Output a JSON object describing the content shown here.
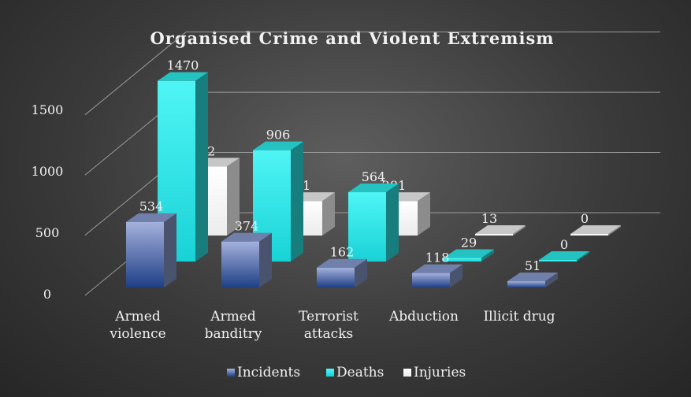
{
  "chart_data": {
    "type": "bar",
    "title": "Organised Crime and Violent Extremism",
    "categories": [
      [
        "Armed",
        "violence"
      ],
      [
        "Armed",
        "banditry"
      ],
      [
        "Terrorist",
        "attacks"
      ],
      [
        "Abduction"
      ],
      [
        "Illicit drug"
      ]
    ],
    "series": [
      {
        "name": "Incidents",
        "values": [
          534,
          374,
          162,
          118,
          51
        ],
        "color": "#8496c8"
      },
      {
        "name": "Deaths",
        "values": [
          1470,
          906,
          564,
          29,
          0
        ],
        "color": "#2ce4e4"
      },
      {
        "name": "Injuries",
        "values": [
          562,
          281,
          281,
          13,
          0
        ],
        "color": "#ffffff"
      }
    ],
    "ylim": [
      0,
      1500
    ],
    "yticks": [
      "0",
      "500",
      "1000",
      "1500"
    ],
    "legend_position": "bottom",
    "grid": true,
    "background": "#3a3a3a"
  }
}
